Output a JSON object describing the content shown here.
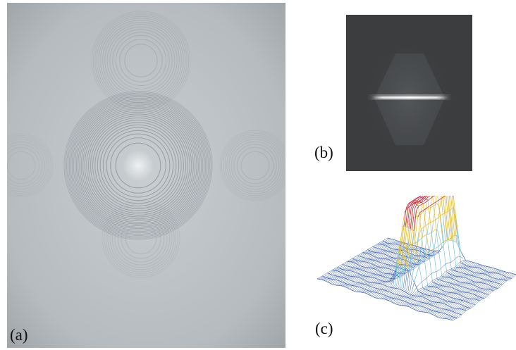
{
  "figure": {
    "panels": [
      {
        "id": "a",
        "label": "(a)",
        "content": "zone-plate-ring-pattern"
      },
      {
        "id": "b",
        "label": "(b)",
        "content": "diffraction-intensity-image"
      },
      {
        "id": "c",
        "label": "(c)",
        "content": "3d-intensity-surface-plot"
      }
    ]
  },
  "colors": {
    "panel_a_background": "#b9bec2",
    "ring_stroke": "#8f979c",
    "panel_b_background": "#3b3d3f",
    "bright_line": "#ffffff",
    "mesh_base": "#3a5fb0",
    "mesh_peak_top": "#c0304a",
    "mesh_peak_mid": "#e0c040"
  }
}
